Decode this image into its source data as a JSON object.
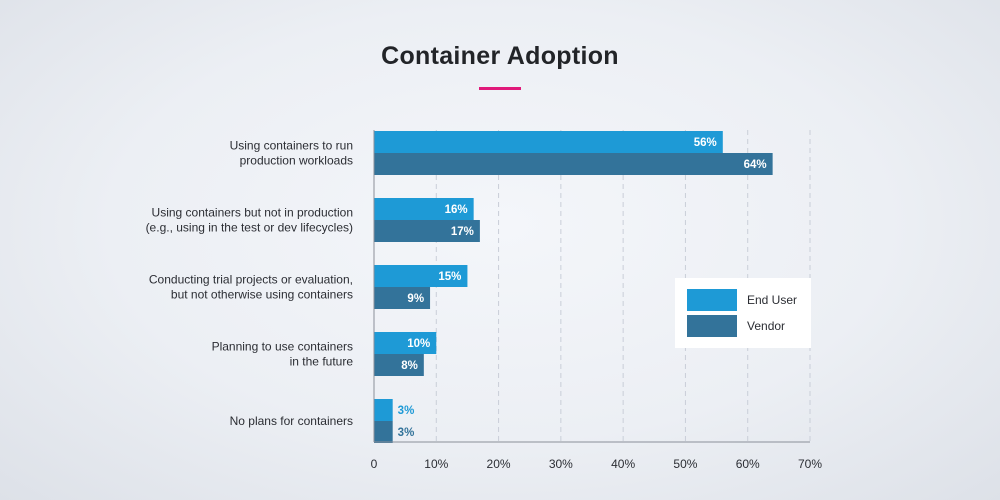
{
  "title": "Container Adoption",
  "colors": {
    "accent": "#e0197a",
    "end_user": "#1e9ad6",
    "vendor": "#33739a"
  },
  "legend": {
    "items": [
      {
        "label": "End User",
        "color": "#1e9ad6"
      },
      {
        "label": "Vendor",
        "color": "#33739a"
      }
    ],
    "position": "right"
  },
  "chart_data": {
    "type": "bar",
    "orientation": "horizontal",
    "title": "Container Adoption",
    "categories": [
      [
        "Using containers to run",
        "production workloads"
      ],
      [
        "Using containers but not in production",
        "(e.g., using in the test or dev lifecycles)"
      ],
      [
        "Conducting trial projects or evaluation,",
        "but not otherwise using containers"
      ],
      [
        "Planning to use containers",
        "in the future"
      ],
      [
        "No plans for containers"
      ]
    ],
    "series": [
      {
        "name": "End User",
        "values": [
          56,
          16,
          15,
          10,
          3
        ],
        "color": "#1e9ad6"
      },
      {
        "name": "Vendor",
        "values": [
          64,
          17,
          9,
          8,
          3
        ],
        "color": "#33739a"
      }
    ],
    "value_suffix": "%",
    "xlim": [
      0,
      70
    ],
    "xticks": [
      "0",
      "10%",
      "20%",
      "30%",
      "40%",
      "50%",
      "60%",
      "70%"
    ],
    "xtick_values": [
      0,
      10,
      20,
      30,
      40,
      50,
      60,
      70
    ],
    "grid": "vertical dashed"
  }
}
